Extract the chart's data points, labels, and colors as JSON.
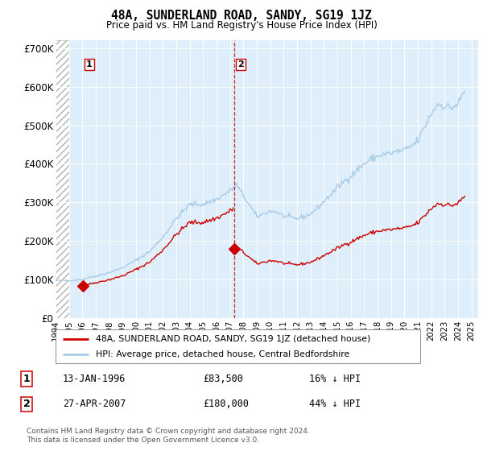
{
  "title": "48A, SUNDERLAND ROAD, SANDY, SG19 1JZ",
  "subtitle": "Price paid vs. HM Land Registry's House Price Index (HPI)",
  "ylim": [
    0,
    720000
  ],
  "yticks": [
    0,
    100000,
    200000,
    300000,
    400000,
    500000,
    600000,
    700000
  ],
  "ytick_labels": [
    "£0",
    "£100K",
    "£200K",
    "£300K",
    "£400K",
    "£500K",
    "£600K",
    "£700K"
  ],
  "hpi_color": "#a8cce8",
  "price_color": "#cc0000",
  "vline_color": "#cc0000",
  "plot_bg_color": "#deeefa",
  "transaction1": {
    "date": "13-JAN-1996",
    "price": 83500,
    "label": "16% ↓ HPI",
    "num": "1",
    "year": 1996.04
  },
  "transaction2": {
    "date": "27-APR-2007",
    "price": 180000,
    "label": "44% ↓ HPI",
    "num": "2",
    "year": 2007.32
  },
  "legend_line1": "48A, SUNDERLAND ROAD, SANDY, SG19 1JZ (detached house)",
  "legend_line2": "HPI: Average price, detached house, Central Bedfordshire",
  "footer": "Contains HM Land Registry data © Crown copyright and database right 2024.\nThis data is licensed under the Open Government Licence v3.0.",
  "xmin": 1994.0,
  "xmax": 2025.5,
  "xticks": [
    1994,
    1995,
    1996,
    1997,
    1998,
    1999,
    2000,
    2001,
    2002,
    2003,
    2004,
    2005,
    2006,
    2007,
    2008,
    2009,
    2010,
    2011,
    2012,
    2013,
    2014,
    2015,
    2016,
    2017,
    2018,
    2019,
    2020,
    2021,
    2022,
    2023,
    2024,
    2025
  ]
}
